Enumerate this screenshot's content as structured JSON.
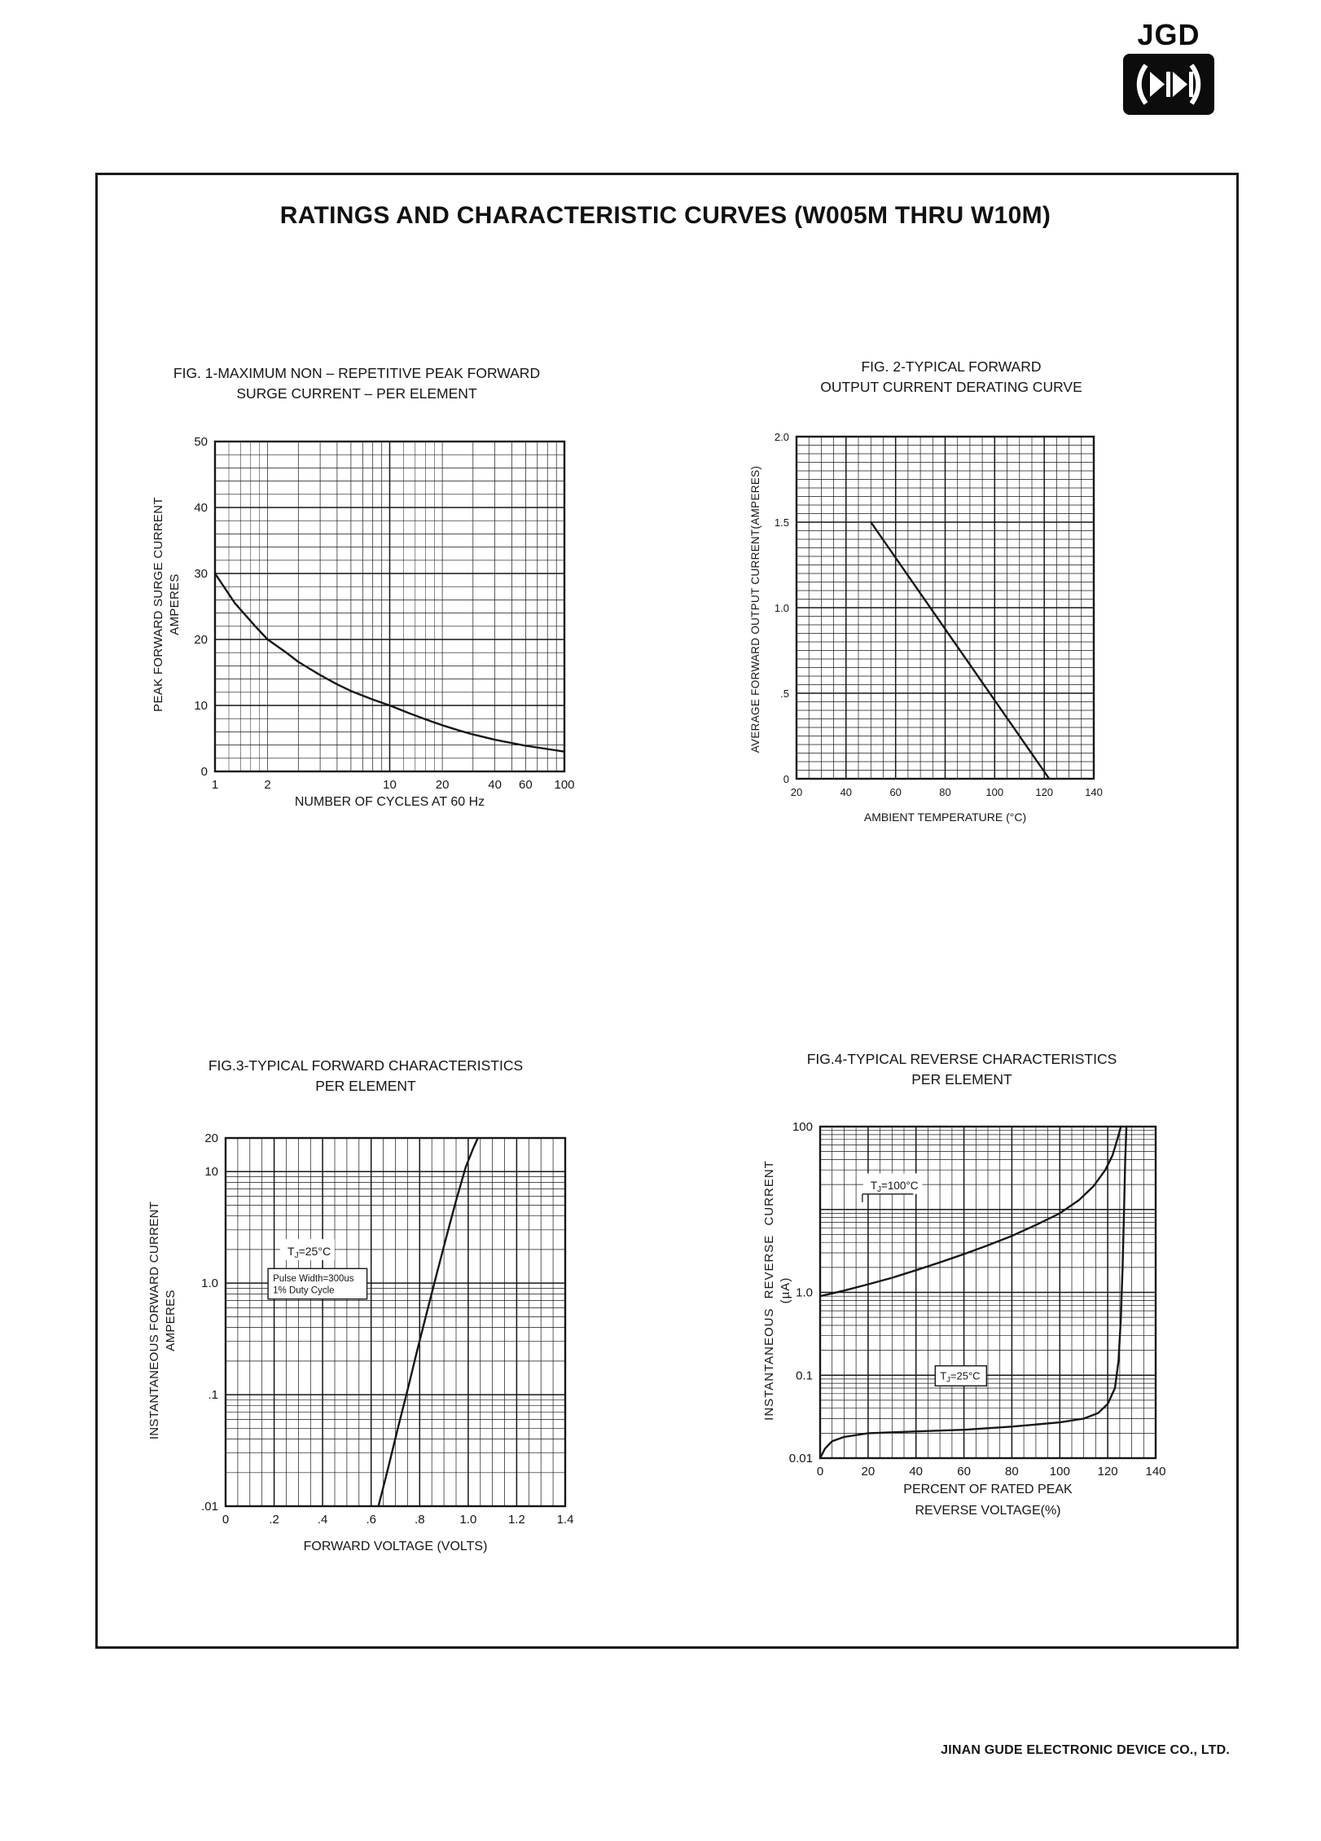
{
  "page": {
    "logo_text": "JGD",
    "title": "RATINGS AND CHARACTERISTIC CURVES (W005M THRU W10M)",
    "footer": "JINAN GUDE ELECTRONIC DEVICE CO., LTD."
  },
  "chart_data": [
    {
      "id": "fig1",
      "type": "line",
      "title_line1": "FIG. 1-MAXIMUM NON – REPETITIVE PEAK FORWARD",
      "title_line2": "SURGE CURRENT – PER ELEMENT",
      "xlabel": "NUMBER OF CYCLES AT 60 Hz",
      "ylabel_line1": "PEAK FORWARD SURGE CURRENT",
      "ylabel_line2": "AMPERES",
      "x": {
        "scale": "log",
        "min": 1,
        "max": 100,
        "dense": true,
        "ticks": [
          [
            1,
            "1"
          ],
          [
            2,
            "2"
          ],
          [
            10,
            "10"
          ],
          [
            20,
            "20"
          ],
          [
            40,
            "40"
          ],
          [
            60,
            "60"
          ],
          [
            100,
            "100"
          ]
        ]
      },
      "y": {
        "scale": "linear",
        "min": 0,
        "max": 50,
        "minor": 2,
        "ticks": [
          [
            0,
            "0"
          ],
          [
            10,
            "10"
          ],
          [
            20,
            "20"
          ],
          [
            30,
            "30"
          ],
          [
            40,
            "40"
          ],
          [
            50,
            "50"
          ]
        ]
      },
      "series": [
        {
          "name": "peak-forward-surge-current",
          "points": [
            [
              1,
              30
            ],
            [
              1.3,
              25.5
            ],
            [
              1.7,
              22
            ],
            [
              2,
              20
            ],
            [
              2.5,
              18.2
            ],
            [
              3,
              16.6
            ],
            [
              4,
              14.6
            ],
            [
              5,
              13.2
            ],
            [
              6,
              12.2
            ],
            [
              8,
              10.9
            ],
            [
              10,
              10
            ],
            [
              13,
              8.8
            ],
            [
              16,
              7.9
            ],
            [
              20,
              7
            ],
            [
              25,
              6.2
            ],
            [
              30,
              5.6
            ],
            [
              40,
              4.8
            ],
            [
              50,
              4.3
            ],
            [
              60,
              3.9
            ],
            [
              80,
              3.4
            ],
            [
              100,
              3
            ]
          ]
        }
      ],
      "annotations": []
    },
    {
      "id": "fig2",
      "type": "line",
      "title_line1": "FIG. 2-TYPICAL FORWARD",
      "title_line2": "OUTPUT CURRENT DERATING CURVE",
      "xlabel": "AMBIENT TEMPERATURE (°C)",
      "ylabel_line1": "AVERAGE FORWARD OUTPUT CURRENT(AMPERES)",
      "x": {
        "scale": "linear",
        "min": 20,
        "max": 140,
        "minor": 5,
        "ticks": [
          [
            20,
            "20"
          ],
          [
            40,
            "40"
          ],
          [
            60,
            "60"
          ],
          [
            80,
            "80"
          ],
          [
            100,
            "100"
          ],
          [
            120,
            "120"
          ],
          [
            140,
            "140"
          ]
        ]
      },
      "y": {
        "scale": "linear",
        "min": 0,
        "max": 2,
        "minor": 0.05,
        "ticks": [
          [
            0,
            "0"
          ],
          [
            0.5,
            ".5"
          ],
          [
            1,
            "1.0"
          ],
          [
            1.5,
            "1.5"
          ],
          [
            2,
            "2.0"
          ]
        ]
      },
      "series": [
        {
          "name": "derating",
          "points": [
            [
              50,
              1.5
            ],
            [
              122,
              0
            ]
          ]
        }
      ],
      "annotations": []
    },
    {
      "id": "fig3",
      "type": "line",
      "title_line1": "FIG.3-TYPICAL FORWARD CHARACTERISTICS",
      "title_line2": "PER ELEMENT",
      "xlabel": "FORWARD VOLTAGE (VOLTS)",
      "ylabel_line1": "INSTANTANEOUS FORWARD CURRENT",
      "ylabel_line2": "AMPERES",
      "x": {
        "scale": "linear",
        "min": 0,
        "max": 1.4,
        "minor": 0.05,
        "ticks": [
          [
            0,
            "0"
          ],
          [
            0.2,
            ".2"
          ],
          [
            0.4,
            ".4"
          ],
          [
            0.6,
            ".6"
          ],
          [
            0.8,
            ".8"
          ],
          [
            1,
            "1.0"
          ],
          [
            1.2,
            "1.2"
          ],
          [
            1.4,
            "1.4"
          ]
        ]
      },
      "y": {
        "scale": "log",
        "min": 0.01,
        "max": 20,
        "ticks": [
          [
            20,
            "20"
          ],
          [
            10,
            "10"
          ],
          [
            1,
            "1.0"
          ],
          [
            0.1,
            ".1"
          ],
          [
            0.01,
            ".01"
          ]
        ]
      },
      "series": [
        {
          "name": "forward-characteristic",
          "points": [
            [
              0.63,
              0.01
            ],
            [
              0.67,
              0.022
            ],
            [
              0.71,
              0.05
            ],
            [
              0.75,
              0.11
            ],
            [
              0.79,
              0.25
            ],
            [
              0.83,
              0.55
            ],
            [
              0.87,
              1.2
            ],
            [
              0.91,
              2.6
            ],
            [
              0.95,
              5.5
            ],
            [
              0.99,
              11
            ],
            [
              1.02,
              16
            ],
            [
              1.04,
              20
            ]
          ]
        }
      ],
      "annotations": [
        {
          "text": "T_J=25°C",
          "x": 0.235,
          "y": 2.4,
          "fs": 14,
          "boxed": false
        },
        {
          "lines": [
            "Pulse Width=300us",
            "1% Duty Cycle"
          ],
          "x": 0.175,
          "y": 1.35,
          "fs": 11.5,
          "boxed": true
        }
      ]
    },
    {
      "id": "fig4",
      "type": "line",
      "title_line1": "FIG.4-TYPICAL REVERSE CHARACTERISTICS",
      "title_line2": "PER ELEMENT",
      "xlabel_line1": "PERCENT OF RATED PEAK",
      "xlabel_line2": "REVERSE VOLTAGE(%)",
      "ylabel_line1": "INSTANTANEOUS REVERSE CURRENT",
      "ylabel_line2": "(µA)",
      "x": {
        "scale": "linear",
        "min": 0,
        "max": 140,
        "minor": 5,
        "ticks": [
          [
            0,
            "0"
          ],
          [
            20,
            "20"
          ],
          [
            40,
            "40"
          ],
          [
            60,
            "60"
          ],
          [
            80,
            "80"
          ],
          [
            100,
            "100"
          ],
          [
            120,
            "120"
          ],
          [
            140,
            "140"
          ]
        ]
      },
      "y": {
        "scale": "log",
        "min": 0.01,
        "max": 100,
        "ticks": [
          [
            100,
            "100"
          ],
          [
            1,
            "1.0"
          ],
          [
            0.1,
            "0.1"
          ],
          [
            0.01,
            "0.01"
          ]
        ]
      },
      "series": [
        {
          "name": "tj-100c",
          "points": [
            [
              0,
              0.9
            ],
            [
              10,
              1.05
            ],
            [
              20,
              1.25
            ],
            [
              30,
              1.5
            ],
            [
              40,
              1.85
            ],
            [
              50,
              2.3
            ],
            [
              60,
              2.9
            ],
            [
              70,
              3.7
            ],
            [
              80,
              4.8
            ],
            [
              90,
              6.5
            ],
            [
              100,
              9
            ],
            [
              108,
              13
            ],
            [
              114,
              19
            ],
            [
              119,
              30
            ],
            [
              122,
              45
            ],
            [
              124,
              70
            ],
            [
              125.5,
              100
            ]
          ]
        },
        {
          "name": "tj-25c",
          "points": [
            [
              0,
              0.01
            ],
            [
              2,
              0.013
            ],
            [
              5,
              0.016
            ],
            [
              10,
              0.018
            ],
            [
              20,
              0.02
            ],
            [
              40,
              0.021
            ],
            [
              60,
              0.022
            ],
            [
              80,
              0.024
            ],
            [
              100,
              0.027
            ],
            [
              110,
              0.03
            ],
            [
              116,
              0.035
            ],
            [
              120,
              0.045
            ],
            [
              123,
              0.07
            ],
            [
              124.5,
              0.15
            ],
            [
              125.5,
              0.5
            ],
            [
              126.2,
              2
            ],
            [
              126.8,
              10
            ],
            [
              127.3,
              40
            ],
            [
              127.8,
              100
            ]
          ]
        }
      ],
      "annotations": [
        {
          "text": "T_J=100°C",
          "x": 19,
          "y": 26,
          "fs": 13.5,
          "boxed": false,
          "underline": true
        },
        {
          "text": "T_J=25°C",
          "x": 48,
          "y": 0.13,
          "fs": 13,
          "boxed": true
        }
      ]
    }
  ]
}
